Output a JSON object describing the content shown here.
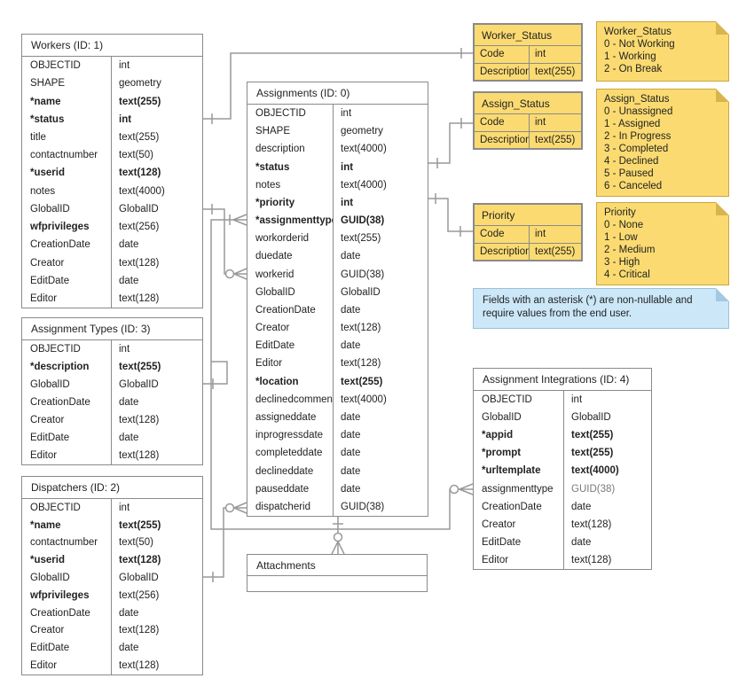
{
  "tables": {
    "workers": {
      "title": "Workers (ID: 1)",
      "rows": [
        {
          "f": "OBJECTID",
          "t": "int",
          "b": ""
        },
        {
          "f": "SHAPE",
          "t": "geometry",
          "b": ""
        },
        {
          "f": "*name",
          "t": "text(255)",
          "b": "b"
        },
        {
          "f": "*status",
          "t": "int",
          "b": "b"
        },
        {
          "f": "title",
          "t": "text(255)",
          "b": ""
        },
        {
          "f": "contactnumber",
          "t": "text(50)",
          "b": ""
        },
        {
          "f": "*userid",
          "t": "text(128)",
          "b": "b"
        },
        {
          "f": "notes",
          "t": "text(4000)",
          "b": ""
        },
        {
          "f": "GlobalID",
          "t": "GlobalID",
          "b": ""
        },
        {
          "f": "wfprivileges",
          "t": "text(256)",
          "b": "n"
        },
        {
          "f": "CreationDate",
          "t": "date",
          "b": ""
        },
        {
          "f": "Creator",
          "t": "text(128)",
          "b": ""
        },
        {
          "f": "EditDate",
          "t": "date",
          "b": ""
        },
        {
          "f": "Editor",
          "t": "text(128)",
          "b": ""
        }
      ]
    },
    "assignment_types": {
      "title": "Assignment Types (ID: 3)",
      "rows": [
        {
          "f": "OBJECTID",
          "t": "int",
          "b": ""
        },
        {
          "f": "*description",
          "t": "text(255)",
          "b": "b"
        },
        {
          "f": "GlobalID",
          "t": "GlobalID",
          "b": ""
        },
        {
          "f": "CreationDate",
          "t": "date",
          "b": ""
        },
        {
          "f": "Creator",
          "t": "text(128)",
          "b": ""
        },
        {
          "f": "EditDate",
          "t": "date",
          "b": ""
        },
        {
          "f": "Editor",
          "t": "text(128)",
          "b": ""
        }
      ]
    },
    "dispatchers": {
      "title": "Dispatchers (ID: 2)",
      "rows": [
        {
          "f": "OBJECTID",
          "t": "int",
          "b": ""
        },
        {
          "f": "*name",
          "t": "text(255)",
          "b": "b"
        },
        {
          "f": "contactnumber",
          "t": "text(50)",
          "b": ""
        },
        {
          "f": "*userid",
          "t": "text(128)",
          "b": "b"
        },
        {
          "f": "GlobalID",
          "t": "GlobalID",
          "b": ""
        },
        {
          "f": "wfprivileges",
          "t": "text(256)",
          "b": "n"
        },
        {
          "f": "CreationDate",
          "t": "date",
          "b": ""
        },
        {
          "f": "Creator",
          "t": "text(128)",
          "b": ""
        },
        {
          "f": "EditDate",
          "t": "date",
          "b": ""
        },
        {
          "f": "Editor",
          "t": "text(128)",
          "b": ""
        }
      ]
    },
    "assignments": {
      "title": "Assignments (ID: 0)",
      "rows": [
        {
          "f": "OBJECTID",
          "t": "int",
          "b": ""
        },
        {
          "f": "SHAPE",
          "t": "geometry",
          "b": ""
        },
        {
          "f": "description",
          "t": "text(4000)",
          "b": ""
        },
        {
          "f": "*status",
          "t": "int",
          "b": "b"
        },
        {
          "f": "notes",
          "t": "text(4000)",
          "b": ""
        },
        {
          "f": "*priority",
          "t": "int",
          "b": "b"
        },
        {
          "f": "*assignmenttype",
          "t": "GUID(38)",
          "b": "b"
        },
        {
          "f": "workorderid",
          "t": "text(255)",
          "b": ""
        },
        {
          "f": "duedate",
          "t": "date",
          "b": ""
        },
        {
          "f": "workerid",
          "t": "GUID(38)",
          "b": ""
        },
        {
          "f": "GlobalID",
          "t": "GlobalID",
          "b": ""
        },
        {
          "f": "CreationDate",
          "t": "date",
          "b": ""
        },
        {
          "f": "Creator",
          "t": "text(128)",
          "b": ""
        },
        {
          "f": "EditDate",
          "t": "date",
          "b": ""
        },
        {
          "f": "Editor",
          "t": "text(128)",
          "b": ""
        },
        {
          "f": "*location",
          "t": "text(255)",
          "b": "b"
        },
        {
          "f": "declinedcomment",
          "t": "text(4000)",
          "b": ""
        },
        {
          "f": "assigneddate",
          "t": "date",
          "b": ""
        },
        {
          "f": "inprogressdate",
          "t": "date",
          "b": ""
        },
        {
          "f": "completeddate",
          "t": "date",
          "b": ""
        },
        {
          "f": "declineddate",
          "t": "date",
          "b": ""
        },
        {
          "f": "pauseddate",
          "t": "date",
          "b": ""
        },
        {
          "f": "dispatcherid",
          "t": "GUID(38)",
          "b": ""
        }
      ]
    },
    "attachments": {
      "title": "Attachments"
    },
    "assignment_integrations": {
      "title": "Assignment Integrations (ID: 4)",
      "rows": [
        {
          "f": "OBJECTID",
          "t": "int",
          "b": ""
        },
        {
          "f": "GlobalID",
          "t": "GlobalID",
          "b": ""
        },
        {
          "f": "*appid",
          "t": "text(255)",
          "b": "b"
        },
        {
          "f": "*prompt",
          "t": "text(255)",
          "b": "b"
        },
        {
          "f": "*urltemplate",
          "t": "text(4000)",
          "b": "b"
        },
        {
          "f": "assignmenttype",
          "t": "GUID(38)",
          "b": "g"
        },
        {
          "f": "CreationDate",
          "t": "date",
          "b": ""
        },
        {
          "f": "Creator",
          "t": "text(128)",
          "b": ""
        },
        {
          "f": "EditDate",
          "t": "date",
          "b": ""
        },
        {
          "f": "Editor",
          "t": "text(128)",
          "b": ""
        }
      ]
    },
    "worker_status": {
      "title": "Worker_Status",
      "rows": [
        {
          "f": "Code",
          "t": "int",
          "b": ""
        },
        {
          "f": "Description",
          "t": "text(255)",
          "b": ""
        }
      ]
    },
    "assign_status": {
      "title": "Assign_Status",
      "rows": [
        {
          "f": "Code",
          "t": "int",
          "b": ""
        },
        {
          "f": "Description",
          "t": "text(255)",
          "b": ""
        }
      ]
    },
    "priority": {
      "title": "Priority",
      "rows": [
        {
          "f": "Code",
          "t": "int",
          "b": ""
        },
        {
          "f": "Description",
          "t": "text(255)",
          "b": ""
        }
      ]
    }
  },
  "notes": {
    "worker_status": {
      "lines": [
        "Worker_Status",
        "0 - Not Working",
        "1 - Working",
        "2 - On Break"
      ]
    },
    "assign_status": {
      "lines": [
        "Assign_Status",
        "0 - Unassigned",
        "1 - Assigned",
        "2 - In Progress",
        "3 - Completed",
        "4 - Declined",
        "5 - Paused",
        "6 - Canceled"
      ]
    },
    "priority": {
      "lines": [
        "Priority",
        "0 - None",
        "1 - Low",
        "2 - Medium",
        "3 - High",
        "4 - Critical"
      ]
    },
    "asterisk": {
      "text": "Fields with an asterisk (*) are non-nullable and require values from the end user."
    }
  },
  "colors": {
    "sticky_yellow": "#FBDB71",
    "sticky_yellow_border": "#C9A63F",
    "sticky_yellow_fold": "#D9B44C",
    "note_blue": "#CBE7F8",
    "note_blue_border": "#9CC0D6",
    "table_border_gray": "#8A8A8A",
    "connector_gray": "#999999",
    "text": "#222222"
  }
}
